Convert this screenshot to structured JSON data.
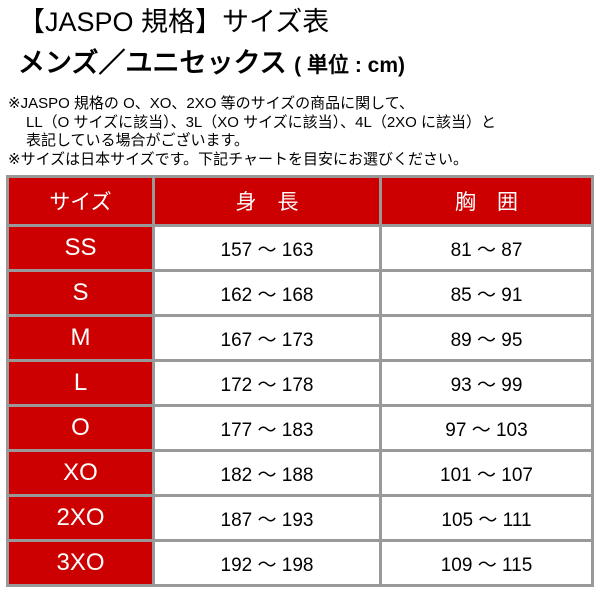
{
  "title": "【JASPO 規格】サイズ表",
  "subtitle": "メンズ／ユニセックス",
  "unit": "( 単位 : cm)",
  "notes": [
    "※JASPO 規格の O、XO、2XO 等のサイズの商品に関して、",
    "LL（O サイズに該当）、3L（XO サイズに該当）、4L（2XO に該当）と",
    "表記している場合がございます。",
    "※サイズは日本サイズです。下記チャートを目安にお選びください。"
  ],
  "table": {
    "headers": [
      "サイズ",
      "身　長",
      "胸　囲"
    ],
    "rows": [
      [
        "SS",
        "157 ～ 163",
        "81 ～ 87"
      ],
      [
        "S",
        "162 ～ 168",
        "85 ～ 91"
      ],
      [
        "M",
        "167 ～ 173",
        "89 ～ 95"
      ],
      [
        "L",
        "172 ～ 178",
        "93 ～ 99"
      ],
      [
        "O",
        "177 ～ 183",
        "97 ～ 103"
      ],
      [
        "XO",
        "182 ～ 188",
        "101 ～ 107"
      ],
      [
        "2XO",
        "187 ～ 193",
        "105 ～ 111"
      ],
      [
        "3XO",
        "192 ～ 198",
        "109 ～ 115"
      ]
    ]
  },
  "colors": {
    "header_bg": "#cc0000",
    "border": "#999999"
  }
}
